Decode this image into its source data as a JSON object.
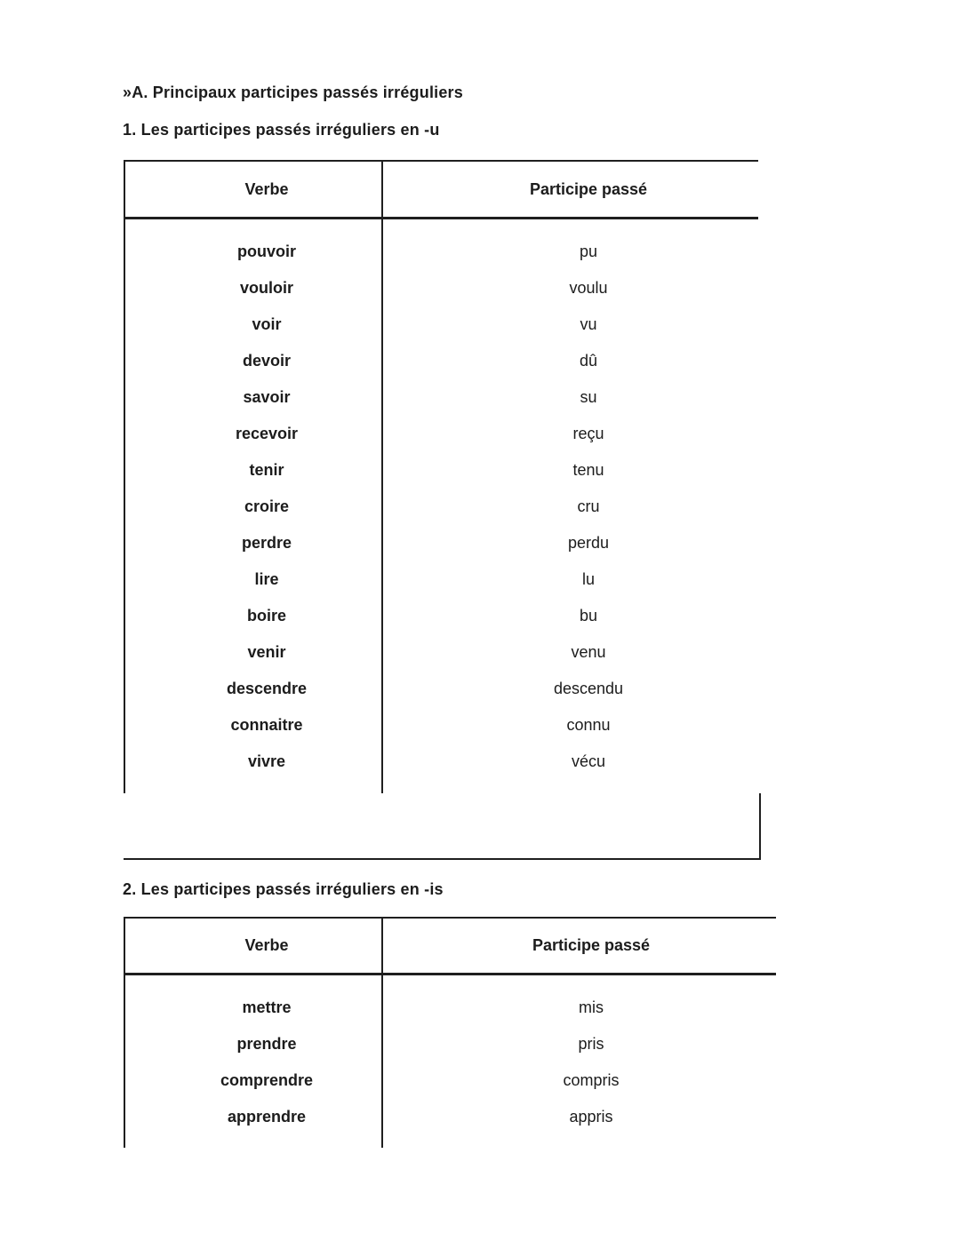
{
  "headings": {
    "section": "»A. Principaux participes passés irréguliers",
    "subsection1": "1. Les participes passés irréguliers en -u",
    "subsection2": "2. Les participes passés irréguliers en -is"
  },
  "table_u": {
    "headers": {
      "verb": "Verbe",
      "participle": "Participe passé"
    },
    "rows": [
      {
        "verb": "pouvoir",
        "participle": "pu"
      },
      {
        "verb": "vouloir",
        "participle": "voulu"
      },
      {
        "verb": "voir",
        "participle": "vu"
      },
      {
        "verb": "devoir",
        "participle": "dû"
      },
      {
        "verb": "savoir",
        "participle": "su"
      },
      {
        "verb": "recevoir",
        "participle": "reçu"
      },
      {
        "verb": "tenir",
        "participle": "tenu"
      },
      {
        "verb": "croire",
        "participle": "cru"
      },
      {
        "verb": "perdre",
        "participle": "perdu"
      },
      {
        "verb": "lire",
        "participle": "lu"
      },
      {
        "verb": "boire",
        "participle": "bu"
      },
      {
        "verb": "venir",
        "participle": "venu"
      },
      {
        "verb": "descendre",
        "participle": "descendu"
      },
      {
        "verb": "connaitre",
        "participle": "connu"
      },
      {
        "verb": "vivre",
        "participle": "vécu"
      }
    ]
  },
  "table_is": {
    "headers": {
      "verb": "Verbe",
      "participle": "Participe passé"
    },
    "rows": [
      {
        "verb": "mettre",
        "participle": "mis"
      },
      {
        "verb": "prendre",
        "participle": "pris"
      },
      {
        "verb": "comprendre",
        "participle": "compris"
      },
      {
        "verb": "apprendre",
        "participle": "appris"
      }
    ]
  },
  "colors": {
    "text": "#1c1c1c",
    "line": "#1f1f1f",
    "background": "#ffffff"
  }
}
